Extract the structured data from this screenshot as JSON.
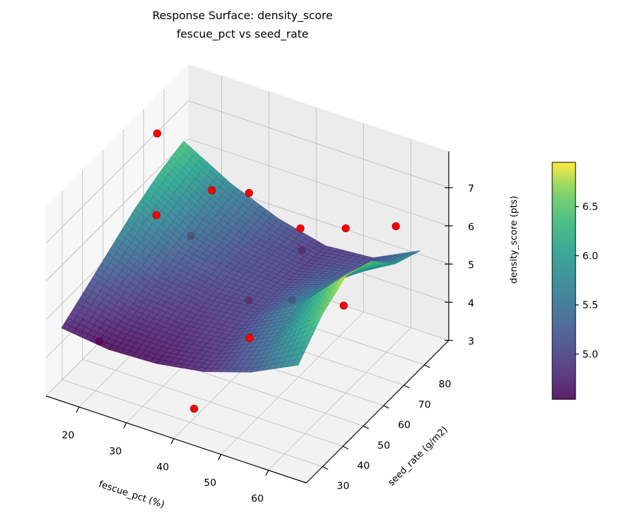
{
  "chart_data": {
    "type": "surface",
    "title_line1": "Response Surface: density_score",
    "title_line2": "fescue_pct vs seed_rate",
    "xlabel": "fescue_pct (%)",
    "ylabel": "seed_rate (g/m2)",
    "zlabel": "density_score (pts)",
    "colorbar_label": "density_score (pts)",
    "colormap": "viridis",
    "xlim": [
      13,
      68
    ],
    "ylim": [
      22,
      92
    ],
    "zlim": [
      3,
      7.95
    ],
    "xticks": [
      20,
      30,
      40,
      50,
      60
    ],
    "yticks": [
      30,
      40,
      50,
      60,
      70,
      80
    ],
    "zticks": [
      3,
      4,
      5,
      6,
      7
    ],
    "colorbar_range": [
      4.54,
      6.95
    ],
    "colorbar_ticks": [
      "5.0",
      "5.5",
      "6.0",
      "6.5"
    ],
    "grid": true,
    "surface": {
      "x_range": [
        15,
        65
      ],
      "y_range": [
        25,
        85
      ],
      "z_grid": [
        [
          4.7,
          4.55,
          4.6,
          4.8,
          5.2,
          5.8
        ],
        [
          5.1,
          4.8,
          4.75,
          4.9,
          5.5,
          6.5
        ],
        [
          5.5,
          5.05,
          4.9,
          5.0,
          5.7,
          6.9
        ],
        [
          5.9,
          5.3,
          5.05,
          5.0,
          5.5,
          6.6
        ],
        [
          6.2,
          5.5,
          5.1,
          4.95,
          5.2,
          5.9
        ],
        [
          6.4,
          5.7,
          5.2,
          4.9,
          5.0,
          5.6
        ]
      ]
    },
    "scatter": {
      "color": "#ff0000",
      "points": [
        {
          "x": 20,
          "y": 32,
          "z": 4.19
        },
        {
          "x": 40,
          "y": 32,
          "z": 3.25
        },
        {
          "x": 50,
          "y": 36,
          "z": 5.3
        },
        {
          "x": 40,
          "y": 59,
          "z": 4.65
        },
        {
          "x": 50,
          "y": 57,
          "z": 5.17
        },
        {
          "x": 60,
          "y": 59,
          "z": 5.34
        },
        {
          "x": 40,
          "y": 85,
          "z": 4.58
        },
        {
          "x": 20,
          "y": 77,
          "z": 4.55
        },
        {
          "x": 15,
          "y": 72,
          "z": 7.29
        },
        {
          "x": 20,
          "y": 60,
          "z": 6.0
        },
        {
          "x": 30,
          "y": 64,
          "z": 6.85
        },
        {
          "x": 40,
          "y": 59,
          "z": 7.46
        },
        {
          "x": 50,
          "y": 61,
          "z": 6.84
        },
        {
          "x": 60,
          "y": 60,
          "z": 7.31
        },
        {
          "x": 65,
          "y": 73,
          "z": 6.88
        }
      ]
    }
  }
}
